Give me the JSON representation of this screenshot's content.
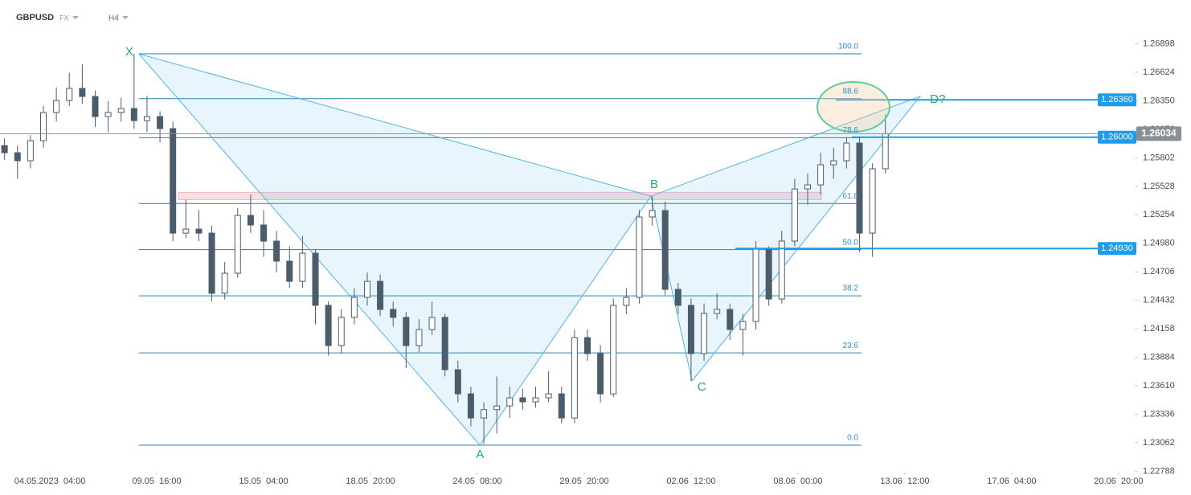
{
  "header": {
    "symbol": "GBPUSD",
    "market": "FX",
    "interval": "H4"
  },
  "chart_data": {
    "type": "candlestick",
    "xlim": [
      -15.4,
      334.5
    ],
    "xticks": [
      {
        "value": 0,
        "label": "04.05.2023  04:00"
      },
      {
        "value": 33,
        "label": "09.05  16:00"
      },
      {
        "value": 66,
        "label": "15.05  04:00"
      },
      {
        "value": 99,
        "label": "18.05  20:00"
      },
      {
        "value": 132,
        "label": "24.05  08:00"
      },
      {
        "value": 165,
        "label": "29.05  20:00"
      },
      {
        "value": 198,
        "label": "02.06  12:00"
      },
      {
        "value": 231,
        "label": "08.06  00:00"
      },
      {
        "value": 264,
        "label": "13.06  12:00"
      },
      {
        "value": 297,
        "label": "17.06  04:00"
      },
      {
        "value": 330,
        "label": "20.06  20:00"
      }
    ],
    "ylim": [
      1.2276,
      1.2732
    ],
    "yticks": [
      1.26898,
      1.26624,
      {
        "value": 1.2635,
        "label": "1.26350"
      },
      1.26076,
      1.25802,
      1.25528,
      1.25254,
      {
        "value": 1.2498,
        "label": "1.24980"
      },
      1.24706,
      1.24432,
      1.24158,
      1.23884,
      {
        "value": 1.2361,
        "label": "1.23610"
      },
      1.23336,
      1.23062,
      1.22788
    ],
    "up_color": "#ffffff",
    "down_color": "#4b5d6c",
    "x": [
      -14,
      -10,
      -6,
      -2,
      2,
      6,
      10,
      14,
      18,
      22,
      26,
      30,
      34,
      38,
      42,
      46,
      50,
      54,
      58,
      62,
      66,
      70,
      74,
      78,
      82,
      86,
      90,
      94,
      98,
      102,
      106,
      110,
      114,
      118,
      122,
      126,
      130,
      134,
      138,
      142,
      146,
      150,
      154,
      158,
      162,
      166,
      170,
      174,
      178,
      182,
      186,
      190,
      194,
      198,
      202,
      206,
      210,
      214,
      218,
      222,
      226,
      230,
      234,
      238,
      242,
      246,
      250,
      254,
      258
    ],
    "open": [
      1.2592,
      1.25851,
      1.25774,
      1.25967,
      1.26238,
      1.26354,
      1.2647,
      1.26392,
      1.26199,
      1.26238,
      1.26276,
      1.2616,
      1.26199,
      1.26083,
      1.25078,
      1.25117,
      1.25078,
      1.24499,
      1.24692,
      1.25248,
      1.25156,
      1.25001,
      1.24808,
      1.24614,
      1.24885,
      1.24383,
      1.23996,
      1.24267,
      1.2446,
      1.24614,
      1.24344,
      1.24267,
      1.23996,
      1.24151,
      1.24267,
      1.23764,
      1.23532,
      1.233,
      1.2338,
      1.23416,
      1.23494,
      1.23455,
      1.23494,
      1.23532,
      1.233,
      1.24073,
      1.23919,
      1.23532,
      1.24383,
      1.2446,
      1.25233,
      1.25295,
      1.24537,
      1.24383,
      1.23919,
      1.24305,
      1.24344,
      1.24151,
      1.24228,
      1.24924,
      1.24444,
      1.25001,
      1.25503,
      1.25542,
      1.25735,
      1.25774,
      1.25944,
      1.25078,
      1.25697
    ],
    "high": [
      1.2599,
      1.2592,
      1.2602,
      1.263,
      1.2648,
      1.2662,
      1.267,
      1.2645,
      1.2635,
      1.2638,
      1.26802,
      1.264,
      1.2625,
      1.2615,
      1.254,
      1.253,
      1.2515,
      1.248,
      1.2532,
      1.2545,
      1.253,
      1.251,
      1.2495,
      1.2505,
      1.2492,
      1.2442,
      1.2435,
      1.2455,
      1.247,
      1.2468,
      1.2442,
      1.2432,
      1.2425,
      1.2442,
      1.243,
      1.2385,
      1.236,
      1.2345,
      1.237,
      1.236,
      1.2358,
      1.236,
      1.2375,
      1.236,
      1.2415,
      1.2415,
      1.24,
      1.2445,
      1.2455,
      1.253,
      1.25434,
      1.2538,
      1.246,
      1.2445,
      1.244,
      1.245,
      1.244,
      1.243,
      1.25,
      1.2495,
      1.251,
      1.256,
      1.2565,
      1.2585,
      1.259,
      1.26,
      1.26,
      1.2575,
      1.2622
    ],
    "low": [
      1.2578,
      1.256,
      1.257,
      1.259,
      1.2615,
      1.263,
      1.2632,
      1.261,
      1.2605,
      1.2615,
      1.2608,
      1.2605,
      1.2595,
      1.25,
      1.2503,
      1.25,
      1.2442,
      1.2444,
      1.2465,
      1.2508,
      1.2485,
      1.247,
      1.2455,
      1.2455,
      1.242,
      1.239,
      1.2392,
      1.242,
      1.2438,
      1.2428,
      1.2418,
      1.2378,
      1.2393,
      1.241,
      1.237,
      1.2345,
      1.2322,
      1.2305,
      1.2315,
      1.233,
      1.2338,
      1.234,
      1.2345,
      1.2325,
      1.2325,
      1.2385,
      1.2345,
      1.235,
      1.243,
      1.244,
      1.2515,
      1.2448,
      1.243,
      1.23657,
      1.2385,
      1.2425,
      1.2405,
      1.239,
      1.2415,
      1.2438,
      1.244,
      1.2495,
      1.2535,
      1.2545,
      1.256,
      1.257,
      1.249,
      1.2485,
      1.2565
    ],
    "close": [
      1.25851,
      1.25774,
      1.25967,
      1.26238,
      1.26354,
      1.2647,
      1.26392,
      1.26199,
      1.26238,
      1.26276,
      1.2616,
      1.26199,
      1.26083,
      1.25078,
      1.25117,
      1.25078,
      1.24499,
      1.24692,
      1.25248,
      1.25156,
      1.25001,
      1.24808,
      1.24614,
      1.24885,
      1.24383,
      1.23996,
      1.24267,
      1.2446,
      1.24614,
      1.24344,
      1.24267,
      1.23996,
      1.24151,
      1.24267,
      1.23764,
      1.23532,
      1.233,
      1.2338,
      1.23416,
      1.23494,
      1.23455,
      1.23494,
      1.23532,
      1.233,
      1.24073,
      1.23919,
      1.23532,
      1.24383,
      1.2446,
      1.25233,
      1.25295,
      1.24537,
      1.24383,
      1.23919,
      1.24305,
      1.24344,
      1.24151,
      1.24228,
      1.24924,
      1.24444,
      1.25001,
      1.25503,
      1.25542,
      1.25735,
      1.25774,
      1.25944,
      1.25078,
      1.25697,
      1.26034
    ],
    "pattern": [
      {
        "label": "X",
        "x": 27.5,
        "price": 1.26802
      },
      {
        "label": "A",
        "x": 132.8,
        "price": 1.23038
      },
      {
        "label": "B",
        "x": 185.6,
        "price": 1.25434
      },
      {
        "label": "C",
        "x": 198.3,
        "price": 1.23657
      },
      {
        "label": "D?",
        "x": 268.7,
        "price": 1.26393
      }
    ],
    "pattern_color": "#4fb3e8",
    "label_color": "#21a97a",
    "fib_levels": [
      {
        "label": "100.0",
        "value": 1.26802
      },
      {
        "label": "88.6",
        "value": 1.26371
      },
      {
        "label": "78.6",
        "value": 1.25995
      },
      {
        "label": "61.8",
        "value": 1.25363
      },
      {
        "label": "50.0",
        "value": 1.24919
      },
      {
        "label": "38.2",
        "value": 1.24475
      },
      {
        "label": "23.6",
        "value": 1.23926
      },
      {
        "label": "0.0",
        "value": 1.23038
      }
    ],
    "fib_color": "#2a7fb0",
    "zone": {
      "low": 1.254,
      "high": 1.2547,
      "color": "#f3b9c3"
    },
    "price_lines": [
      {
        "value": 1.2636,
        "label": "1.26360"
      },
      {
        "value": 1.26,
        "label": "1.26000"
      },
      {
        "value": 1.2493,
        "label": "1.24930"
      }
    ],
    "price_line_color": "#1e9be9",
    "current_price": {
      "value": 1.26034,
      "label": "1.26034",
      "color": "#8a8f94"
    }
  }
}
